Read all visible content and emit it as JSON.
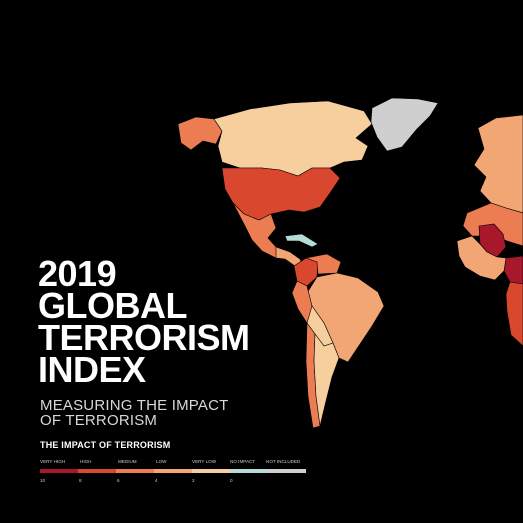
{
  "title_lines": [
    "2019",
    "GLOBAL",
    "TERRORISM",
    "INDEX"
  ],
  "subtitle_lines": [
    "MEASURING THE IMPACT",
    "OF TERRORISM"
  ],
  "legend": {
    "title": "THE IMPACT OF TERRORISM",
    "labels": [
      "VERY HIGH",
      "HIGH",
      "MEDIUM",
      "LOW",
      "VERY LOW",
      "NO IMPACT",
      "NOT INCLUDED"
    ],
    "scale_values": [
      "10",
      "8",
      "6",
      "4",
      "2",
      "0"
    ],
    "colors": {
      "very_high": "#a8182b",
      "high": "#d9472f",
      "medium": "#ec7c52",
      "low": "#f2a674",
      "very_low": "#f7cf9f",
      "no_impact": "#b6dcd8",
      "not_included": "#cfcfcf"
    }
  },
  "map": {
    "background": "#000000",
    "regions": [
      {
        "name": "Canada",
        "level": "very_low"
      },
      {
        "name": "Alaska",
        "level": "medium"
      },
      {
        "name": "Greenland",
        "level": "not_included"
      },
      {
        "name": "United States",
        "level": "high"
      },
      {
        "name": "Mexico",
        "level": "medium"
      },
      {
        "name": "Central America",
        "level": "low"
      },
      {
        "name": "Caribbean",
        "level": "no_impact"
      },
      {
        "name": "Colombia",
        "level": "high"
      },
      {
        "name": "Venezuela",
        "level": "medium"
      },
      {
        "name": "Brazil",
        "level": "low"
      },
      {
        "name": "Peru",
        "level": "medium"
      },
      {
        "name": "Bolivia",
        "level": "very_low"
      },
      {
        "name": "Chile",
        "level": "medium"
      },
      {
        "name": "Argentina",
        "level": "very_low"
      },
      {
        "name": "Europe",
        "level": "low"
      },
      {
        "name": "North Africa",
        "level": "medium"
      },
      {
        "name": "Mali",
        "level": "very_high"
      },
      {
        "name": "Nigeria",
        "level": "very_high"
      },
      {
        "name": "West Africa",
        "level": "low"
      },
      {
        "name": "Central Africa",
        "level": "high"
      }
    ]
  }
}
